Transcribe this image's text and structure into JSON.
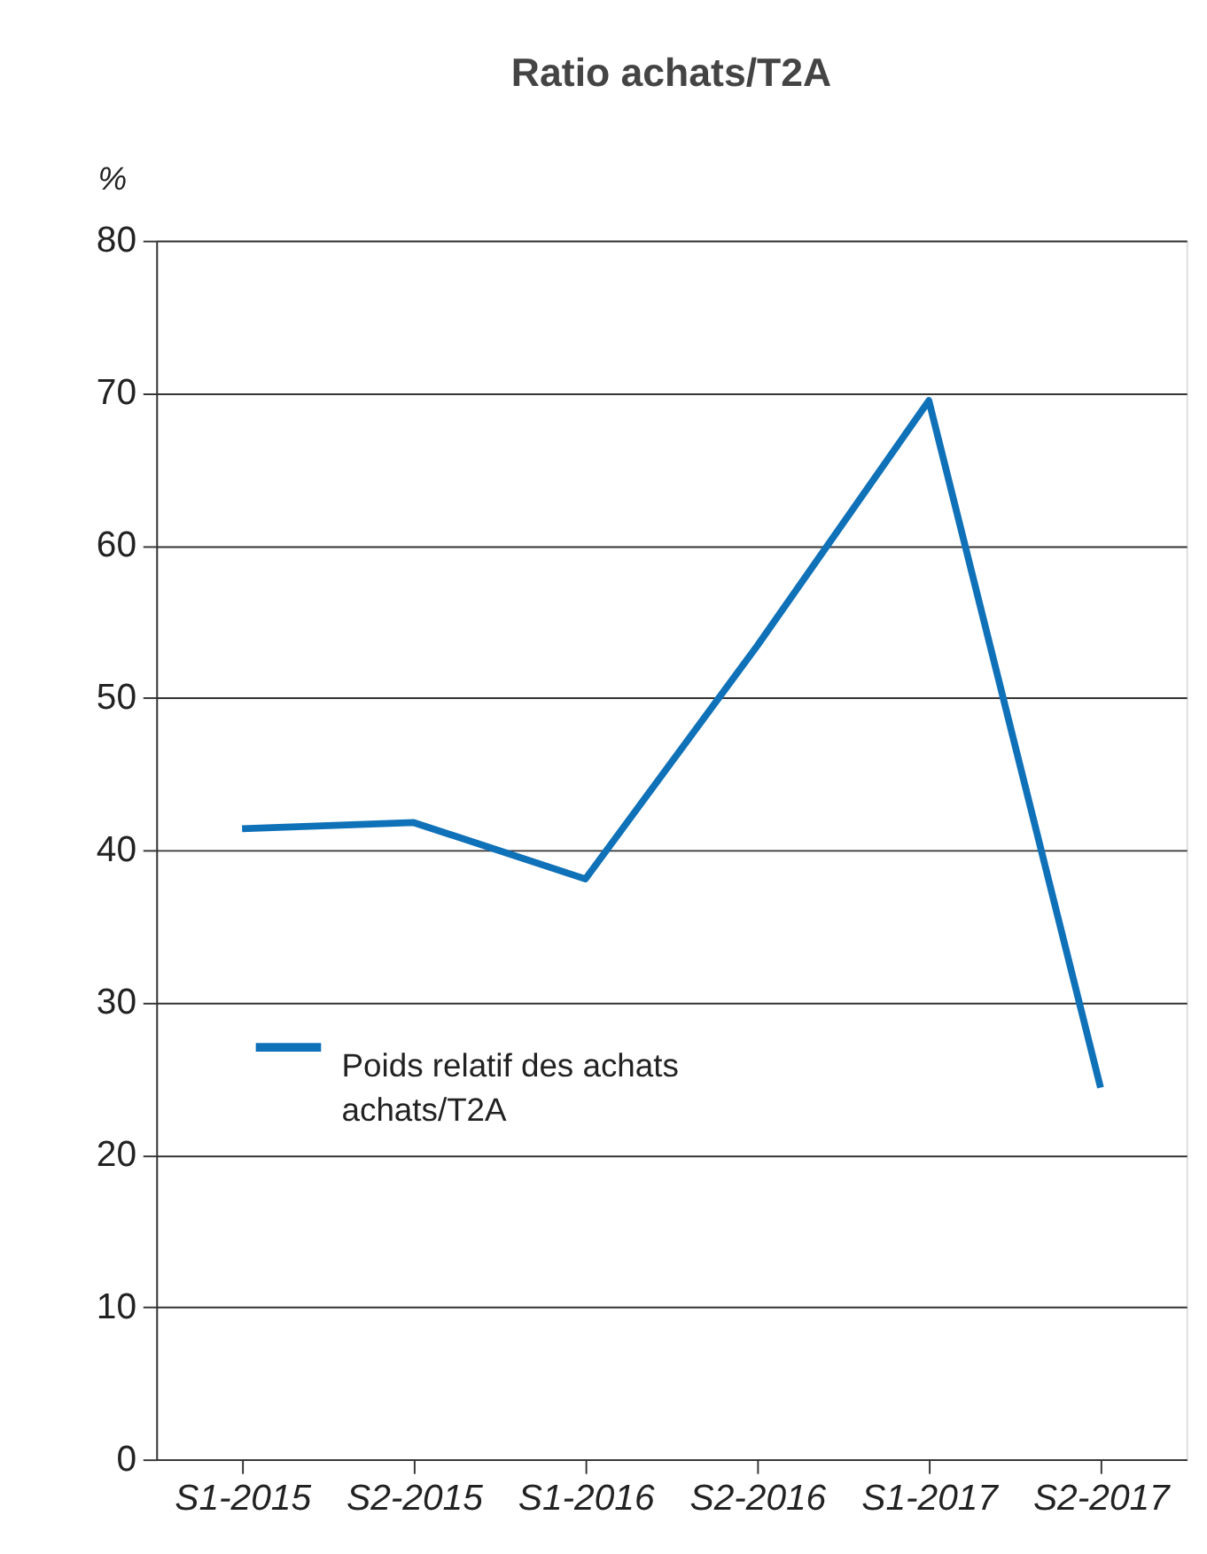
{
  "chart_data": {
    "type": "line",
    "title": "Ratio achats/T2A",
    "ylabel": "%",
    "categories": [
      "S1-2015",
      "S2-2015",
      "S1-2016",
      "S2-2016",
      "S1-2017",
      "S2-2017"
    ],
    "series": [
      {
        "name": "Poids relatif des achats\nachats/T2A",
        "color": "#0f71b8",
        "values": [
          41.4,
          41.8,
          38.1,
          53.4,
          69.5,
          24.4
        ]
      }
    ],
    "ylim": [
      0,
      80
    ],
    "yticks": [
      0,
      10,
      20,
      30,
      40,
      50,
      60,
      70,
      80
    ],
    "grid": "y",
    "legend": "bottom left",
    "marker": "none",
    "line_style": "solid"
  }
}
